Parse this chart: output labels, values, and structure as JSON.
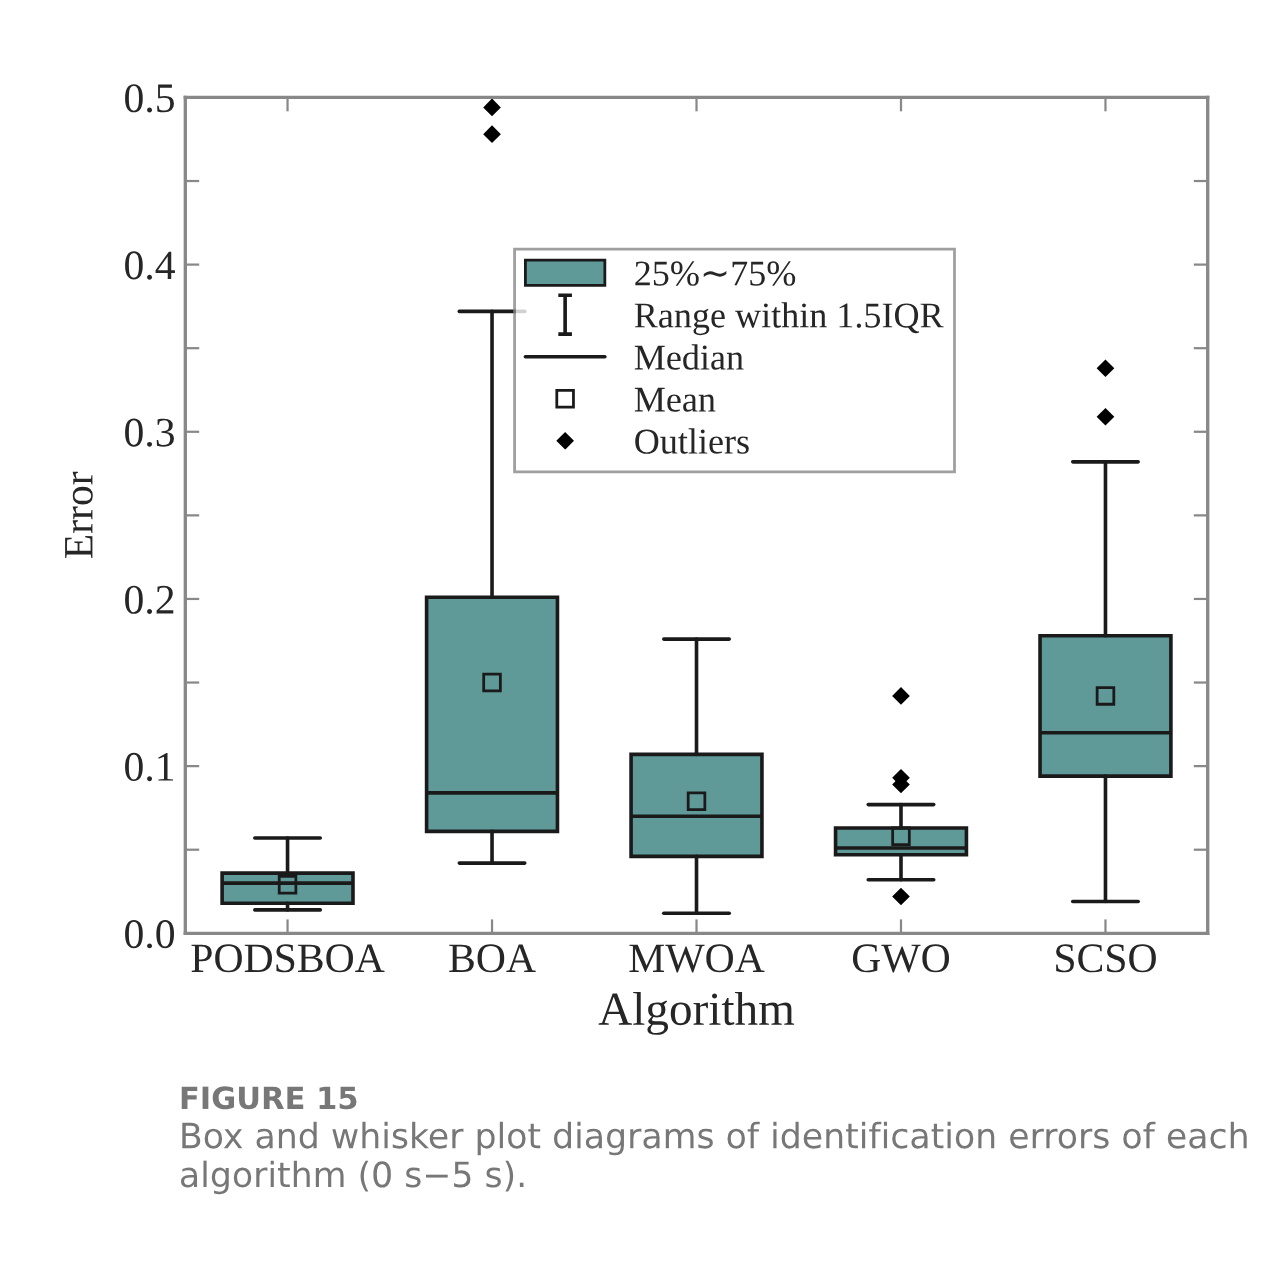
{
  "chart_data": {
    "type": "box",
    "xlabel": "Algorithm",
    "ylabel": "Error",
    "categories": [
      "PODSBOA",
      "BOA",
      "MWOA",
      "GWO",
      "SCSO"
    ],
    "series": [
      {
        "name": "25%∼75%",
        "color": "#5f9a98",
        "boxes": [
          {
            "low": 0.014,
            "q1": 0.018,
            "median": 0.03,
            "q3": 0.036,
            "high": 0.057,
            "mean": 0.029
          },
          {
            "low": 0.042,
            "q1": 0.061,
            "median": 0.084,
            "q3": 0.201,
            "high": 0.372,
            "mean": 0.15,
            "outliers": [
              0.478,
              0.494
            ]
          },
          {
            "low": 0.012,
            "q1": 0.046,
            "median": 0.07,
            "q3": 0.107,
            "high": 0.176,
            "mean": 0.079
          },
          {
            "low": 0.032,
            "q1": 0.047,
            "median": 0.051,
            "q3": 0.063,
            "high": 0.077,
            "mean": 0.058,
            "outliers": [
              0.022,
              0.089,
              0.093,
              0.142
            ]
          },
          {
            "low": 0.019,
            "q1": 0.094,
            "median": 0.12,
            "q3": 0.178,
            "high": 0.282,
            "mean": 0.142,
            "outliers": [
              0.309,
              0.338
            ]
          }
        ]
      }
    ],
    "ylim": [
      0,
      0.5
    ],
    "yticks": [
      {
        "value": 0,
        "label": "0.0"
      },
      {
        "value": 0.05,
        "label": null
      },
      0.1,
      {
        "value": 0.15,
        "label": null
      },
      0.2,
      {
        "value": 0.25,
        "label": null
      },
      0.3,
      {
        "value": 0.35,
        "label": null
      },
      0.4,
      {
        "value": 0.45,
        "label": null
      },
      0.5
    ],
    "legend": "top right",
    "grid": false,
    "annotations": [
      "Range within 1.5IQR",
      "Median",
      "Mean",
      "Outliers",
      "FIGURE 15",
      "Box and whisker plot diagrams of identification errors of each algorithm (0 s−5 s)."
    ]
  }
}
